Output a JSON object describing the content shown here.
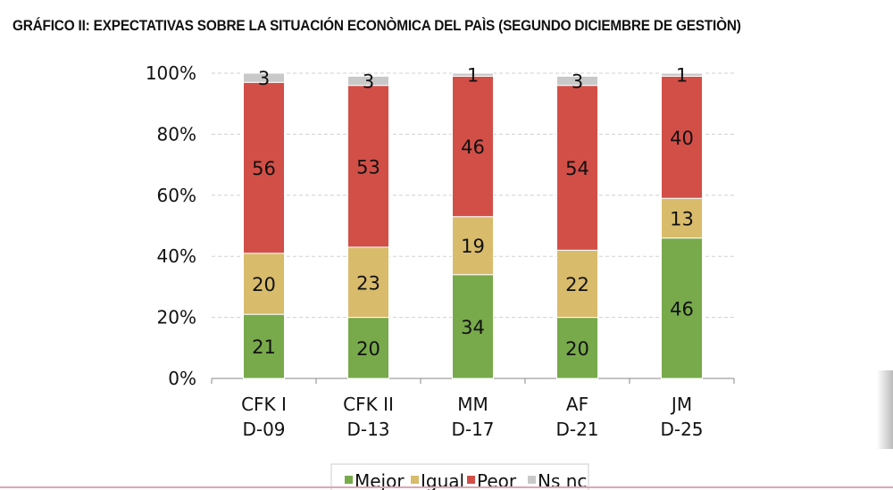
{
  "chart_data": {
    "type": "bar",
    "stacked": true,
    "title": "GRÁFICO II: EXPECTATIVAS SOBRE LA SITUACIÓN ECONÒMICA DEL PAÌS (SEGUNDO DICIEMBRE DE GESTIÒN)",
    "categories": [
      [
        "CFK I",
        "D-09"
      ],
      [
        "CFK II",
        "D-13"
      ],
      [
        "MM",
        "D-17"
      ],
      [
        "AF",
        "D-21"
      ],
      [
        "JM",
        "D-25"
      ]
    ],
    "series": [
      {
        "name": "Mejor",
        "color": "#78a94b",
        "values": [
          21,
          20,
          34,
          20,
          46
        ]
      },
      {
        "name": "Igual",
        "color": "#d8bb6b",
        "values": [
          20,
          23,
          19,
          22,
          13
        ]
      },
      {
        "name": "Peor",
        "color": "#d24f48",
        "values": [
          56,
          53,
          46,
          54,
          40
        ]
      },
      {
        "name": "Ns nc",
        "color": "#c9c9c9",
        "values": [
          3,
          3,
          1,
          3,
          1
        ]
      }
    ],
    "yticks": [
      "0%",
      "20%",
      "40%",
      "60%",
      "80%",
      "100%"
    ],
    "ylim": [
      0,
      100
    ],
    "grid": true,
    "legend": "bottom"
  }
}
